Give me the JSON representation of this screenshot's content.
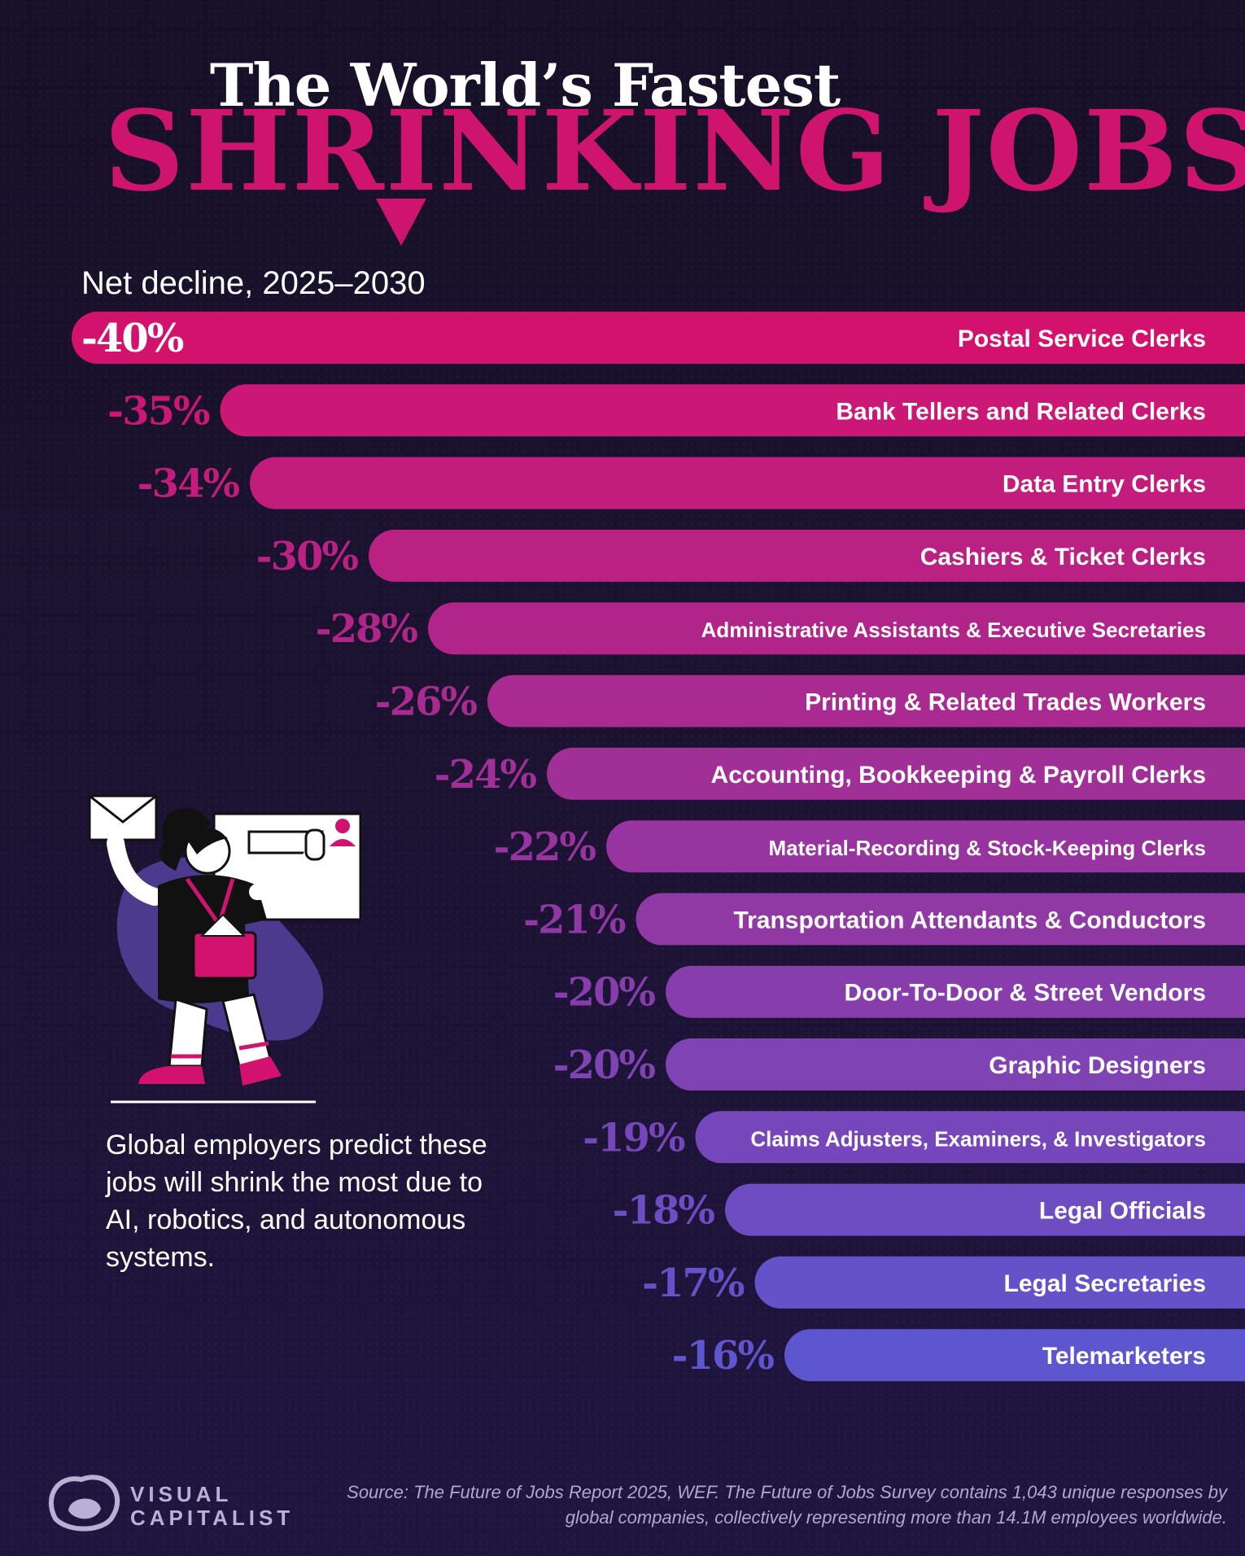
{
  "header": {
    "title_line1": "The World’s Fastest",
    "title_line2": "SHRINKING JOBS",
    "subtitle": "Net decline, 2025–2030"
  },
  "caption": "Global employers predict these jobs will shrink the most due to AI, robotics, and autonomous systems.",
  "footer": {
    "brand_line1": "VISUAL",
    "brand_line2": "CAPITALIST",
    "source": "Source: The Future of Jobs Report 2025, WEF. The Future of Jobs Survey contains 1,043 unique responses by global companies, collectively representing more than 14.1M employees worldwide."
  },
  "chart_data": {
    "type": "bar",
    "orientation": "horizontal",
    "title": "The World’s Fastest Shrinking Jobs",
    "subtitle": "Net decline, 2025–2030",
    "unit": "%",
    "categories": [
      "Postal Service Clerks",
      "Bank Tellers and Related Clerks",
      "Data Entry Clerks",
      "Cashiers & Ticket Clerks",
      "Administrative Assistants & Executive Secretaries",
      "Printing & Related Trades Workers",
      "Accounting, Bookkeeping & Payroll Clerks",
      "Material-Recording & Stock-Keeping Clerks",
      "Transportation Attendants & Conductors",
      "Door-To-Door & Street Vendors",
      "Graphic Designers",
      "Claims Adjusters, Examiners, & Investigators",
      "Legal Officials",
      "Legal Secretaries",
      "Telemarketers"
    ],
    "values": [
      -40,
      -35,
      -34,
      -30,
      -28,
      -26,
      -24,
      -22,
      -21,
      -20,
      -20,
      -19,
      -18,
      -17,
      -16
    ],
    "value_labels": [
      "-40%",
      "-35%",
      "-34%",
      "-30%",
      "-28%",
      "-26%",
      "-24%",
      "-22%",
      "-21%",
      "-20%",
      "-20%",
      "-19%",
      "-18%",
      "-17%",
      "-16%"
    ],
    "colors": {
      "start": "#d3126e",
      "end": "#5d56cf",
      "first_label": "#ffffff"
    }
  }
}
